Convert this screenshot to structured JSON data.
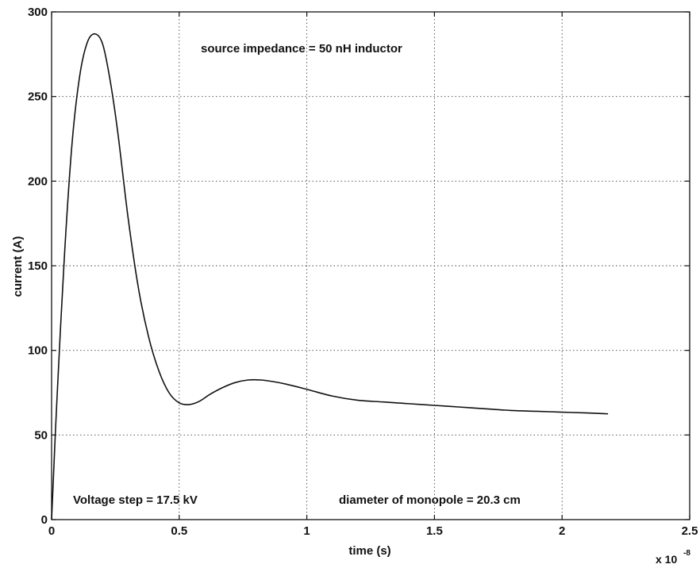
{
  "chart_data": {
    "type": "line",
    "title": "",
    "xlabel": "time (s)",
    "ylabel": "current (A)",
    "x_multiplier_label": {
      "base": "x 10",
      "exponent": "-8"
    },
    "xlim": [
      0,
      2.5
    ],
    "ylim": [
      0,
      300
    ],
    "x_ticks": [
      0,
      0.5,
      1,
      1.5,
      2,
      2.5
    ],
    "x_tick_labels": [
      "0",
      "0.5",
      "1",
      "1.5",
      "2",
      "2.5"
    ],
    "y_ticks": [
      0,
      50,
      100,
      150,
      200,
      250,
      300
    ],
    "y_tick_labels": [
      "0",
      "50",
      "100",
      "150",
      "200",
      "250",
      "300"
    ],
    "grid": true,
    "annotations": [
      "source impedance = 50 nH inductor",
      "Voltage step = 17.5 kV",
      "diameter of monopole = 20.3 cm"
    ],
    "series": [
      {
        "x": [
          0,
          0.02,
          0.05,
          0.08,
          0.11,
          0.14,
          0.17,
          0.2,
          0.23,
          0.26,
          0.3,
          0.34,
          0.38,
          0.42,
          0.46,
          0.5,
          0.54,
          0.58,
          0.62,
          0.67,
          0.72,
          0.77,
          0.82,
          0.87,
          0.92,
          1.0,
          1.1,
          1.2,
          1.3,
          1.4,
          1.5,
          1.6,
          1.7,
          1.8,
          1.9,
          2.0,
          2.1,
          2.18
        ],
        "y": [
          0,
          68,
          155,
          222,
          262,
          282,
          287,
          281,
          259,
          228,
          178,
          137,
          108,
          88,
          75,
          69,
          68,
          70,
          74,
          78,
          81,
          82.5,
          82.5,
          81.5,
          80,
          77,
          73,
          70.5,
          69.5,
          68.5,
          67.5,
          66.5,
          65.5,
          64.5,
          64,
          63.5,
          63,
          62.5
        ]
      }
    ]
  },
  "colors": {
    "line": "#111111",
    "grid": "#444444",
    "background": "#ffffff"
  }
}
